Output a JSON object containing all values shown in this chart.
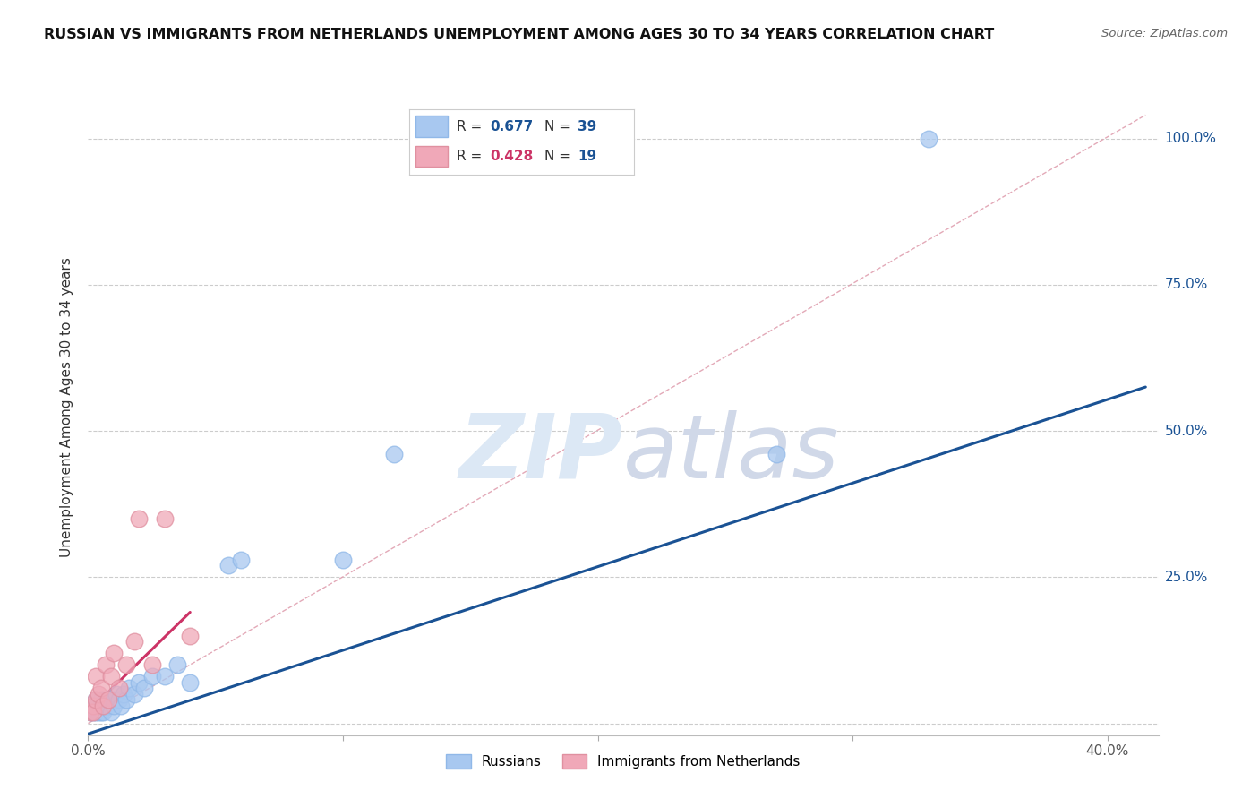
{
  "title": "RUSSIAN VS IMMIGRANTS FROM NETHERLANDS UNEMPLOYMENT AMONG AGES 30 TO 34 YEARS CORRELATION CHART",
  "source": "Source: ZipAtlas.com",
  "ylabel": "Unemployment Among Ages 30 to 34 years",
  "xlim": [
    0.0,
    0.42
  ],
  "ylim": [
    -0.02,
    1.1
  ],
  "xtick_positions": [
    0.0,
    0.1,
    0.2,
    0.3,
    0.4
  ],
  "ytick_positions": [
    0.0,
    0.25,
    0.5,
    0.75,
    1.0
  ],
  "blue_color": "#A8C8F0",
  "blue_edge_color": "#90B8E8",
  "pink_color": "#F0A8B8",
  "pink_edge_color": "#E090A0",
  "blue_line_color": "#1A5294",
  "pink_line_color": "#CC3366",
  "diag_line_color": "#E0A0B0",
  "grid_color": "#CCCCCC",
  "legend_blue_R": "0.677",
  "legend_blue_N": "39",
  "legend_pink_R": "0.428",
  "legend_pink_N": "19",
  "blue_scatter_x": [
    0.001,
    0.002,
    0.002,
    0.003,
    0.003,
    0.003,
    0.004,
    0.004,
    0.005,
    0.005,
    0.005,
    0.006,
    0.006,
    0.007,
    0.007,
    0.008,
    0.008,
    0.009,
    0.01,
    0.01,
    0.011,
    0.012,
    0.013,
    0.014,
    0.015,
    0.016,
    0.018,
    0.02,
    0.022,
    0.025,
    0.03,
    0.035,
    0.04,
    0.055,
    0.06,
    0.1,
    0.12,
    0.27,
    0.33
  ],
  "blue_scatter_y": [
    0.02,
    0.03,
    0.02,
    0.04,
    0.02,
    0.03,
    0.03,
    0.02,
    0.03,
    0.04,
    0.02,
    0.03,
    0.02,
    0.04,
    0.03,
    0.04,
    0.03,
    0.02,
    0.04,
    0.03,
    0.05,
    0.04,
    0.03,
    0.05,
    0.04,
    0.06,
    0.05,
    0.07,
    0.06,
    0.08,
    0.08,
    0.1,
    0.07,
    0.27,
    0.28,
    0.28,
    0.46,
    0.46,
    1.0
  ],
  "pink_scatter_x": [
    0.001,
    0.002,
    0.002,
    0.003,
    0.003,
    0.004,
    0.005,
    0.006,
    0.007,
    0.008,
    0.009,
    0.01,
    0.012,
    0.015,
    0.018,
    0.02,
    0.025,
    0.03,
    0.04
  ],
  "pink_scatter_y": [
    0.02,
    0.03,
    0.02,
    0.04,
    0.08,
    0.05,
    0.06,
    0.03,
    0.1,
    0.04,
    0.08,
    0.12,
    0.06,
    0.1,
    0.14,
    0.35,
    0.1,
    0.35,
    0.15
  ],
  "blue_line_x": [
    -0.005,
    0.415
  ],
  "blue_line_y": [
    -0.025,
    0.575
  ],
  "pink_line_x": [
    0.0,
    0.04
  ],
  "pink_line_y": [
    0.02,
    0.19
  ],
  "diag_line_x": [
    0.0,
    0.415
  ],
  "diag_line_y": [
    0.0,
    1.04
  ]
}
